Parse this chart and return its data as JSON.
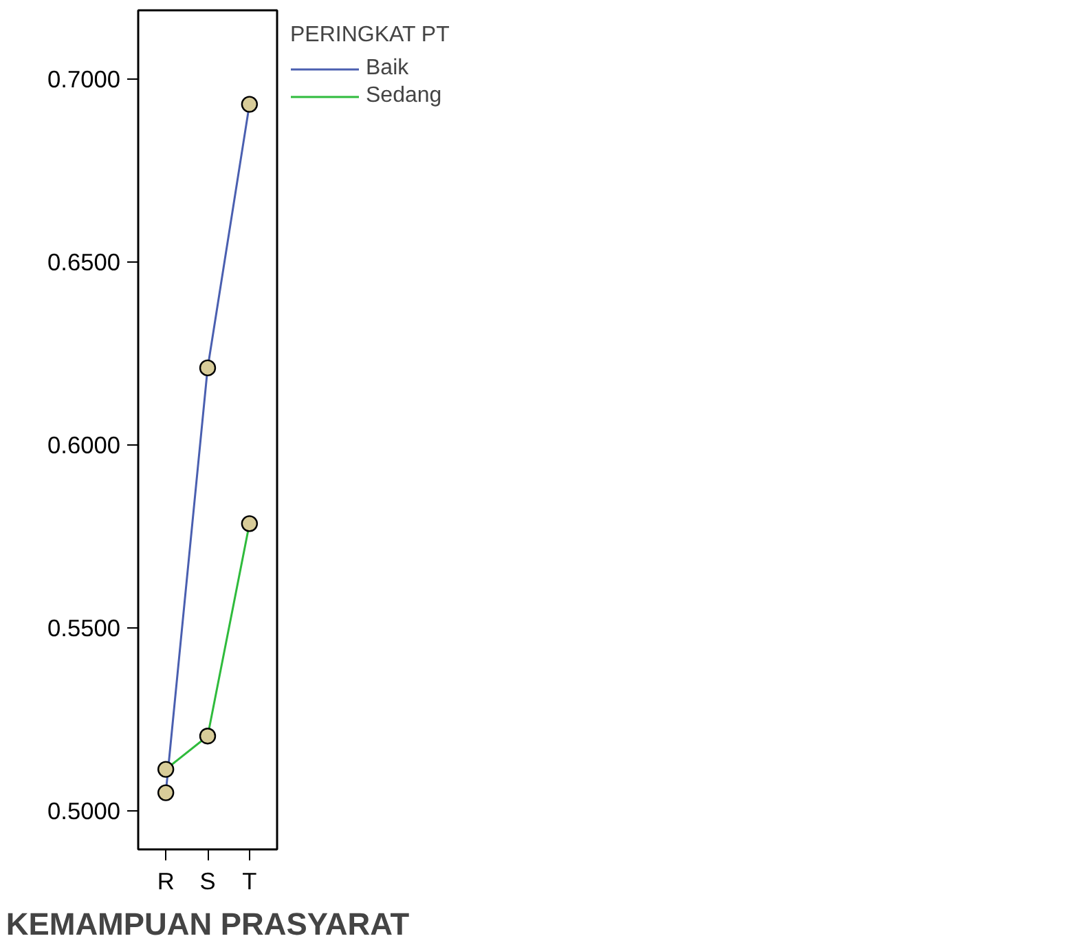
{
  "chart_data": {
    "type": "line",
    "xlabel": "KEMAMPUAN PRASYARAT",
    "legend_title": "PERINGKAT PT",
    "categories": [
      "R",
      "S",
      "T"
    ],
    "series": [
      {
        "name": "Baik",
        "color": "#4a5fb0",
        "values": [
          0.5049,
          0.6211,
          0.6932
        ]
      },
      {
        "name": "Sedang",
        "color": "#2fbb3c",
        "values": [
          0.5113,
          0.5204,
          0.5785
        ]
      }
    ],
    "ylim": [
      0.4894,
      0.7189
    ],
    "yticks": [
      {
        "value": 0.5,
        "label": "0.5000"
      },
      {
        "value": 0.55,
        "label": "0.5500"
      },
      {
        "value": 0.6,
        "label": "0.6000"
      },
      {
        "value": 0.65,
        "label": "0.6500"
      },
      {
        "value": 0.7,
        "label": "0.7000"
      }
    ],
    "marker": "circle",
    "grid": false,
    "legend": "top right"
  }
}
